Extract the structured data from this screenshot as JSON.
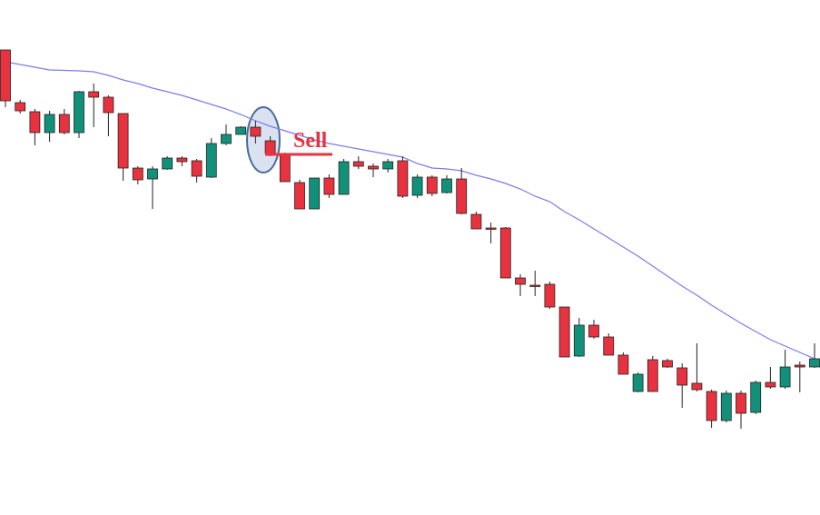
{
  "chart_data": {
    "type": "candlestick",
    "annotation": "Sell",
    "up_color": "#12917a",
    "down_color": "#e8323f",
    "ma_color": "#7b7bef",
    "ylim": [
      0,
      567
    ],
    "open": [
      512,
      454,
      444,
      421,
      441,
      421,
      466,
      460,
      442,
      382,
      370,
      381,
      393,
      390,
      372,
      409,
      419,
      427,
      412,
      397,
      366,
      337,
      371,
      353,
      389,
      384,
      381,
      390,
      352,
      372,
      355,
      370,
      331,
      316,
      316,
      261,
      253,
      254,
      229,
      175,
      209,
      196,
      176,
      136,
      171,
      170,
      162,
      145,
      136,
      104,
      134,
      113,
      146,
      141,
      165,
      163
    ],
    "high": [
      512,
      457,
      447,
      445,
      447,
      467,
      475,
      462,
      442,
      384,
      384,
      395,
      395,
      392,
      415,
      430,
      428,
      434,
      417,
      399,
      369,
      371,
      375,
      392,
      395,
      387,
      392,
      395,
      375,
      374,
      374,
      382,
      334,
      322,
      317,
      265,
      269,
      257,
      229,
      217,
      215,
      200,
      179,
      157,
      175,
      172,
      167,
      189,
      138,
      137,
      137,
      148,
      163,
      182,
      169,
      189
    ],
    "low": [
      449,
      442,
      407,
      411,
      419,
      415,
      427,
      417,
      368,
      364,
      337,
      380,
      384,
      366,
      371,
      407,
      419,
      409,
      395,
      367,
      337,
      337,
      349,
      353,
      381,
      372,
      377,
      349,
      349,
      351,
      354,
      331,
      315,
      299,
      261,
      241,
      241,
      227,
      174,
      174,
      194,
      176,
      155,
      135,
      136,
      162,
      118,
      136,
      96,
      102,
      95,
      111,
      139,
      139,
      135,
      162
    ],
    "close": [
      456,
      445,
      421,
      441,
      421,
      466,
      460,
      443,
      382,
      369,
      381,
      393,
      389,
      373,
      409,
      419,
      427,
      417,
      398,
      367,
      337,
      371,
      353,
      389,
      384,
      381,
      389,
      351,
      372,
      354,
      370,
      332,
      315,
      315,
      261,
      254,
      252,
      229,
      174,
      209,
      196,
      176,
      155,
      155,
      136,
      163,
      143,
      138,
      104,
      134,
      112,
      146,
      141,
      163,
      163,
      172
    ],
    "ma": [
      499,
      496,
      493,
      490,
      489.5,
      489,
      488,
      484,
      479,
      475,
      470,
      466,
      462,
      457,
      452,
      447,
      441,
      434,
      428,
      423,
      418,
      413,
      409,
      406,
      403,
      400,
      397,
      394,
      387,
      382,
      381,
      379,
      374,
      370,
      365,
      359,
      351,
      345,
      334,
      325,
      315,
      305,
      295,
      285,
      274,
      263,
      252,
      242,
      231,
      221,
      211,
      202,
      193,
      186,
      179,
      172
    ]
  }
}
